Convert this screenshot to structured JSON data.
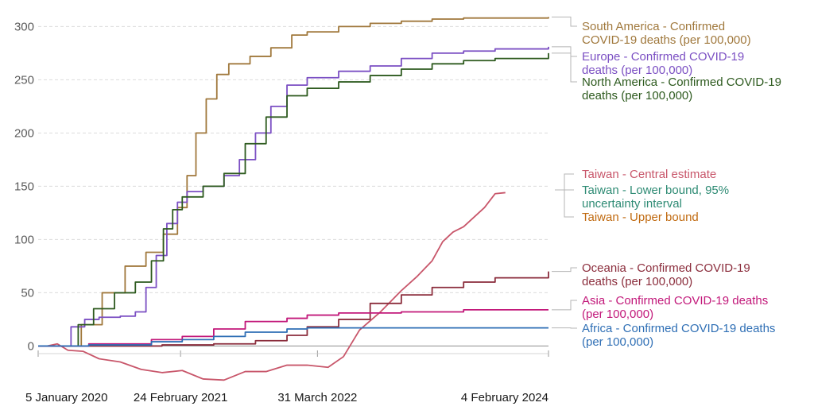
{
  "chart_data": {
    "type": "line",
    "title": "",
    "xlabel": "",
    "ylabel": "",
    "grid": true,
    "legend_placement": "right",
    "xlim": [
      "2020-01-05",
      "2024-02-04"
    ],
    "ylim": [
      -37,
      310
    ],
    "x_ticks": [
      {
        "date": "2020-01-05",
        "label": "5 January 2020"
      },
      {
        "date": "2021-02-24",
        "label": "24 February 2021"
      },
      {
        "date": "2022-03-31",
        "label": "31 March 2022"
      },
      {
        "date": "2024-02-04",
        "label": "4 February 2024"
      }
    ],
    "y_ticks": [
      {
        "value": 0,
        "label": "0"
      },
      {
        "value": 50,
        "label": "50"
      },
      {
        "value": 100,
        "label": "100"
      },
      {
        "value": 150,
        "label": "150"
      },
      {
        "value": 200,
        "label": "200"
      },
      {
        "value": 250,
        "label": "250"
      },
      {
        "value": 300,
        "label": "300"
      }
    ],
    "series": [
      {
        "name": "South America - Confirmed COVID-19 deaths (per 100,000)",
        "color": "#a0783c",
        "step": true,
        "legend_lines": [
          "South America - Confirmed",
          "COVID-19 deaths (per 100,000)"
        ],
        "points": [
          [
            "2020-01-05",
            0
          ],
          [
            "2020-03-15",
            0
          ],
          [
            "2020-05-10",
            20
          ],
          [
            "2020-07-10",
            50
          ],
          [
            "2020-09-15",
            75
          ],
          [
            "2020-11-15",
            88
          ],
          [
            "2021-01-05",
            105
          ],
          [
            "2021-02-15",
            130
          ],
          [
            "2021-03-15",
            160
          ],
          [
            "2021-04-10",
            200
          ],
          [
            "2021-05-10",
            232
          ],
          [
            "2021-06-10",
            255
          ],
          [
            "2021-07-15",
            265
          ],
          [
            "2021-09-15",
            272
          ],
          [
            "2021-11-15",
            280
          ],
          [
            "2022-01-15",
            292
          ],
          [
            "2022-03-01",
            295
          ],
          [
            "2022-06-01",
            300
          ],
          [
            "2022-09-01",
            303
          ],
          [
            "2022-12-01",
            305
          ],
          [
            "2023-03-01",
            307
          ],
          [
            "2023-06-01",
            308
          ],
          [
            "2023-09-01",
            308
          ],
          [
            "2024-02-04",
            309
          ]
        ]
      },
      {
        "name": "Europe - Confirmed COVID-19 deaths (per 100,000)",
        "color": "#7b4fc3",
        "step": true,
        "legend_lines": [
          "Europe - Confirmed COVID-19",
          "deaths (per 100,000)"
        ],
        "points": [
          [
            "2020-01-05",
            0
          ],
          [
            "2020-03-01",
            0
          ],
          [
            "2020-04-10",
            18
          ],
          [
            "2020-05-20",
            25
          ],
          [
            "2020-07-01",
            27
          ],
          [
            "2020-09-01",
            28
          ],
          [
            "2020-10-15",
            32
          ],
          [
            "2020-11-15",
            55
          ],
          [
            "2020-12-15",
            85
          ],
          [
            "2021-01-15",
            115
          ],
          [
            "2021-02-15",
            135
          ],
          [
            "2021-03-15",
            145
          ],
          [
            "2021-05-01",
            150
          ],
          [
            "2021-07-01",
            160
          ],
          [
            "2021-08-15",
            175
          ],
          [
            "2021-10-01",
            200
          ],
          [
            "2021-11-15",
            225
          ],
          [
            "2022-01-01",
            245
          ],
          [
            "2022-03-01",
            252
          ],
          [
            "2022-06-01",
            258
          ],
          [
            "2022-09-01",
            263
          ],
          [
            "2022-12-01",
            270
          ],
          [
            "2023-03-01",
            275
          ],
          [
            "2023-06-01",
            277
          ],
          [
            "2023-09-01",
            279
          ],
          [
            "2024-02-04",
            281
          ]
        ]
      },
      {
        "name": "North America - Confirmed COVID-19 deaths (per 100,000)",
        "color": "#2d5a1e",
        "step": true,
        "legend_lines": [
          "North America - Confirmed COVID-19",
          "deaths (per 100,000)"
        ],
        "points": [
          [
            "2020-01-05",
            0
          ],
          [
            "2020-03-15",
            0
          ],
          [
            "2020-05-01",
            20
          ],
          [
            "2020-06-15",
            35
          ],
          [
            "2020-08-15",
            50
          ],
          [
            "2020-10-15",
            60
          ],
          [
            "2020-12-01",
            80
          ],
          [
            "2021-01-05",
            110
          ],
          [
            "2021-02-01",
            128
          ],
          [
            "2021-03-01",
            140
          ],
          [
            "2021-05-01",
            150
          ],
          [
            "2021-07-01",
            162
          ],
          [
            "2021-09-01",
            190
          ],
          [
            "2021-11-01",
            215
          ],
          [
            "2022-01-01",
            235
          ],
          [
            "2022-03-01",
            242
          ],
          [
            "2022-06-01",
            248
          ],
          [
            "2022-09-01",
            254
          ],
          [
            "2022-12-01",
            260
          ],
          [
            "2023-03-01",
            265
          ],
          [
            "2023-06-01",
            268
          ],
          [
            "2023-09-01",
            270
          ],
          [
            "2024-02-04",
            275
          ]
        ]
      },
      {
        "name": "Taiwan - Central estimate",
        "color": "#c8566a",
        "step": false,
        "legend_lines": [
          "Taiwan - Central estimate"
        ],
        "points": [
          [
            "2020-01-05",
            0
          ],
          [
            "2020-02-01",
            0
          ],
          [
            "2020-03-01",
            2
          ],
          [
            "2020-04-01",
            -4
          ],
          [
            "2020-05-15",
            -5
          ],
          [
            "2020-07-01",
            -12
          ],
          [
            "2020-09-01",
            -15
          ],
          [
            "2020-11-01",
            -22
          ],
          [
            "2021-01-01",
            -25
          ],
          [
            "2021-03-01",
            -23
          ],
          [
            "2021-05-01",
            -31
          ],
          [
            "2021-07-01",
            -32
          ],
          [
            "2021-09-01",
            -24
          ],
          [
            "2021-11-01",
            -24
          ],
          [
            "2022-01-01",
            -18
          ],
          [
            "2022-03-01",
            -18
          ],
          [
            "2022-05-01",
            -20
          ],
          [
            "2022-06-15",
            -10
          ],
          [
            "2022-08-01",
            15
          ],
          [
            "2022-10-01",
            32
          ],
          [
            "2022-12-01",
            52
          ],
          [
            "2023-01-15",
            65
          ],
          [
            "2023-03-01",
            80
          ],
          [
            "2023-04-01",
            98
          ],
          [
            "2023-05-01",
            107
          ],
          [
            "2023-06-01",
            112
          ],
          [
            "2023-08-01",
            130
          ],
          [
            "2023-09-01",
            143
          ],
          [
            "2023-10-01",
            144
          ]
        ]
      },
      {
        "name": "Taiwan - Lower bound, 95% uncertainty interval",
        "color": "#2e8b74",
        "step": false,
        "legend_lines": [
          "Taiwan - Lower bound, 95%",
          "uncertainty interval"
        ],
        "points": []
      },
      {
        "name": "Taiwan - Upper bound",
        "color": "#c06a10",
        "step": false,
        "legend_lines": [
          "Taiwan - Upper bound"
        ],
        "points": []
      },
      {
        "name": "Oceania - Confirmed COVID-19 deaths (per 100,000)",
        "color": "#8b2d3c",
        "step": true,
        "legend_lines": [
          "Oceania - Confirmed COVID-19",
          "deaths (per 100,000)"
        ],
        "points": [
          [
            "2020-01-05",
            0
          ],
          [
            "2020-06-01",
            0
          ],
          [
            "2021-01-01",
            1
          ],
          [
            "2021-06-01",
            2
          ],
          [
            "2021-10-01",
            5
          ],
          [
            "2022-01-01",
            10
          ],
          [
            "2022-03-01",
            18
          ],
          [
            "2022-06-01",
            25
          ],
          [
            "2022-09-01",
            40
          ],
          [
            "2022-12-01",
            48
          ],
          [
            "2023-03-01",
            55
          ],
          [
            "2023-06-01",
            60
          ],
          [
            "2023-09-01",
            64
          ],
          [
            "2024-02-04",
            70
          ]
        ]
      },
      {
        "name": "Asia - Confirmed COVID-19 deaths (per 100,000)",
        "color": "#c2187a",
        "step": true,
        "legend_lines": [
          "Asia - Confirmed COVID-19 deaths",
          "(per 100,000)"
        ],
        "points": [
          [
            "2020-01-05",
            0
          ],
          [
            "2020-06-01",
            2
          ],
          [
            "2020-12-01",
            6
          ],
          [
            "2021-03-01",
            9
          ],
          [
            "2021-06-01",
            16
          ],
          [
            "2021-09-01",
            23
          ],
          [
            "2022-01-01",
            26
          ],
          [
            "2022-03-01",
            29
          ],
          [
            "2022-06-01",
            31
          ],
          [
            "2022-12-01",
            32
          ],
          [
            "2023-06-01",
            34
          ],
          [
            "2024-02-04",
            34
          ]
        ]
      },
      {
        "name": "Africa - Confirmed COVID-19 deaths (per 100,000)",
        "color": "#2f6fb5",
        "step": true,
        "legend_lines": [
          "Africa - Confirmed COVID-19 deaths",
          "(per 100,000)"
        ],
        "points": [
          [
            "2020-01-05",
            0
          ],
          [
            "2020-06-01",
            1
          ],
          [
            "2020-12-01",
            4
          ],
          [
            "2021-03-01",
            6
          ],
          [
            "2021-06-01",
            9
          ],
          [
            "2021-09-01",
            13
          ],
          [
            "2022-01-01",
            16
          ],
          [
            "2022-03-01",
            17
          ],
          [
            "2022-09-01",
            17
          ],
          [
            "2024-02-04",
            17
          ]
        ]
      }
    ]
  }
}
